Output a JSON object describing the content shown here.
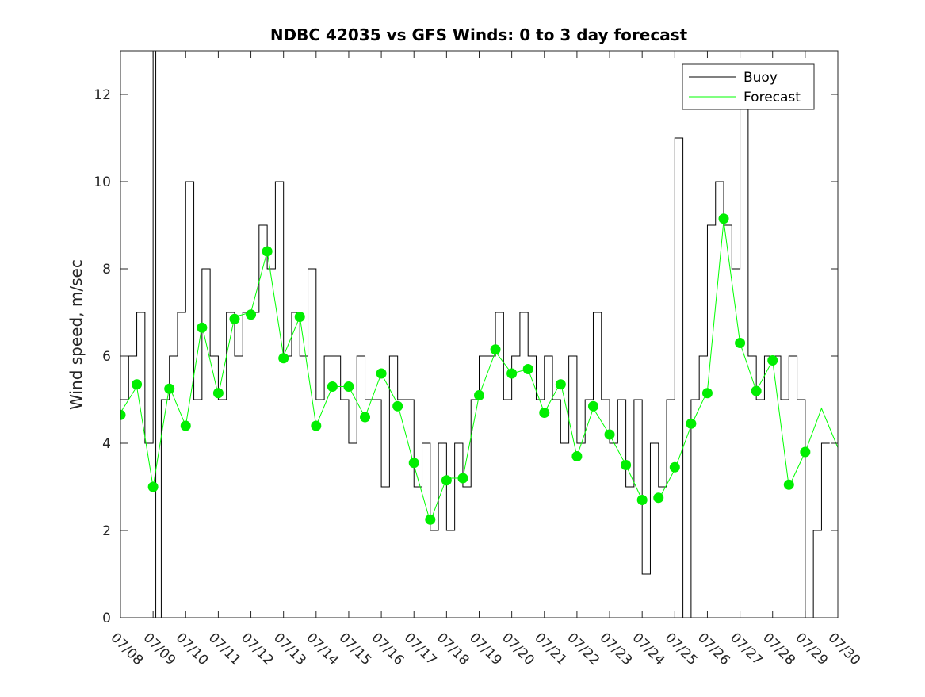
{
  "chart_data": {
    "type": "line",
    "title": "NDBC 42035 vs GFS Winds: 0 to 3 day forecast",
    "xlabel": "",
    "ylabel": "Wind speed, m/sec",
    "xlim": [
      "07/08",
      "07/30"
    ],
    "ylim": [
      0,
      13
    ],
    "y_ticks": [
      0,
      2,
      4,
      6,
      8,
      10,
      12
    ],
    "x_tick_labels": [
      "07/08",
      "07/09",
      "07/10",
      "07/11",
      "07/12",
      "07/13",
      "07/14",
      "07/15",
      "07/16",
      "07/17",
      "07/18",
      "07/19",
      "07/20",
      "07/21",
      "07/22",
      "07/23",
      "07/24",
      "07/25",
      "07/26",
      "07/27",
      "07/28",
      "07/29",
      "07/30"
    ],
    "legend_position": "top-right",
    "grid": false,
    "series": [
      {
        "name": "Buoy",
        "style": "step",
        "color": "#000000",
        "x": [
          "07/08 00:00",
          "07/08 06:00",
          "07/08 12:00",
          "07/08 18:00",
          "07/09 00:00",
          "07/09 02:00",
          "07/09 06:00",
          "07/09 12:00",
          "07/09 18:00",
          "07/10 00:00",
          "07/10 06:00",
          "07/10 12:00",
          "07/10 18:00",
          "07/11 00:00",
          "07/11 06:00",
          "07/11 12:00",
          "07/11 18:00",
          "07/12 00:00",
          "07/12 06:00",
          "07/12 12:00",
          "07/12 18:00",
          "07/13 00:00",
          "07/13 06:00",
          "07/13 12:00",
          "07/13 18:00",
          "07/14 00:00",
          "07/14 06:00",
          "07/14 12:00",
          "07/14 18:00",
          "07/15 00:00",
          "07/15 06:00",
          "07/15 12:00",
          "07/15 18:00",
          "07/16 00:00",
          "07/16 06:00",
          "07/16 12:00",
          "07/16 18:00",
          "07/17 00:00",
          "07/17 06:00",
          "07/17 12:00",
          "07/17 18:00",
          "07/18 00:00",
          "07/18 06:00",
          "07/18 12:00",
          "07/18 18:00",
          "07/19 00:00",
          "07/19 06:00",
          "07/19 12:00",
          "07/19 18:00",
          "07/20 00:00",
          "07/20 06:00",
          "07/20 12:00",
          "07/20 18:00",
          "07/21 00:00",
          "07/21 06:00",
          "07/21 12:00",
          "07/21 18:00",
          "07/22 00:00",
          "07/22 06:00",
          "07/22 12:00",
          "07/22 18:00",
          "07/23 00:00",
          "07/23 06:00",
          "07/23 12:00",
          "07/23 18:00",
          "07/24 00:00",
          "07/24 06:00",
          "07/24 12:00",
          "07/24 18:00",
          "07/25 00:00",
          "07/25 06:00",
          "07/25 12:00",
          "07/25 18:00",
          "07/26 00:00",
          "07/26 06:00",
          "07/26 12:00",
          "07/26 18:00",
          "07/27 00:00",
          "07/27 06:00",
          "07/27 12:00",
          "07/27 18:00",
          "07/28 00:00",
          "07/28 06:00",
          "07/28 12:00",
          "07/28 18:00",
          "07/29 00:00",
          "07/29 06:00",
          "07/29 12:00"
        ],
        "values": [
          5,
          6,
          7,
          4,
          13,
          0,
          5,
          6,
          7,
          10,
          5,
          8,
          6,
          5,
          7,
          6,
          7,
          7,
          9,
          8,
          10,
          6,
          7,
          6,
          8,
          5,
          6,
          6,
          5,
          4,
          6,
          5,
          5,
          3,
          6,
          5,
          5,
          3,
          4,
          2,
          4,
          2,
          4,
          3,
          5,
          6,
          6,
          7,
          5,
          6,
          7,
          6,
          5,
          6,
          5,
          4,
          6,
          4,
          5,
          7,
          5,
          4,
          5,
          3,
          5,
          1,
          4,
          3,
          5,
          11,
          0,
          5,
          6,
          9,
          10,
          9,
          8,
          12,
          6,
          5,
          6,
          6,
          5,
          6,
          5,
          0,
          2,
          4
        ]
      },
      {
        "name": "Forecast",
        "style": "line",
        "color": "#00ff00",
        "x": [
          "07/08 00:00",
          "07/08 12:00",
          "07/09 00:00",
          "07/09 12:00",
          "07/10 00:00",
          "07/10 12:00",
          "07/11 00:00",
          "07/11 12:00",
          "07/12 00:00",
          "07/12 12:00",
          "07/13 00:00",
          "07/13 12:00",
          "07/14 00:00",
          "07/14 12:00",
          "07/15 00:00",
          "07/15 12:00",
          "07/16 00:00",
          "07/16 12:00",
          "07/17 00:00",
          "07/17 12:00",
          "07/18 00:00",
          "07/18 12:00",
          "07/19 00:00",
          "07/19 12:00",
          "07/20 00:00",
          "07/20 12:00",
          "07/21 00:00",
          "07/21 12:00",
          "07/22 00:00",
          "07/22 12:00",
          "07/23 00:00",
          "07/23 12:00",
          "07/24 00:00",
          "07/24 12:00",
          "07/25 00:00",
          "07/25 12:00",
          "07/26 00:00",
          "07/26 12:00",
          "07/27 00:00",
          "07/27 12:00",
          "07/28 00:00",
          "07/28 12:00",
          "07/29 00:00",
          "07/29 12:00",
          "07/30 00:00"
        ],
        "values": [
          4.7,
          5.3,
          3.0,
          5.3,
          4.4,
          6.7,
          5.1,
          6.9,
          7.0,
          8.4,
          6.0,
          6.9,
          4.4,
          5.3,
          5.3,
          4.6,
          5.6,
          4.9,
          3.5,
          2.2,
          3.2,
          3.2,
          5.1,
          6.1,
          5.6,
          5.7,
          4.7,
          5.4,
          3.7,
          4.8,
          4.2,
          3.5,
          2.7,
          2.7,
          3.4,
          4.4,
          5.2,
          9.1,
          6.3,
          5.2,
          5.9,
          3.0,
          3.8,
          4.8,
          3.9
        ]
      }
    ],
    "markers": {
      "color": "#00ee00",
      "x": [
        "07/08 00:00",
        "07/08 12:00",
        "07/09 00:00",
        "07/09 12:00",
        "07/10 00:00",
        "07/10 12:00",
        "07/11 00:00",
        "07/11 12:00",
        "07/12 00:00",
        "07/12 12:00",
        "07/13 00:00",
        "07/13 12:00",
        "07/14 00:00",
        "07/14 12:00",
        "07/15 00:00",
        "07/15 12:00",
        "07/16 00:00",
        "07/16 12:00",
        "07/17 00:00",
        "07/17 12:00",
        "07/18 00:00",
        "07/18 12:00",
        "07/19 00:00",
        "07/19 12:00",
        "07/20 00:00",
        "07/20 12:00",
        "07/21 00:00",
        "07/21 12:00",
        "07/22 00:00",
        "07/22 12:00",
        "07/23 00:00",
        "07/23 12:00",
        "07/24 00:00",
        "07/24 12:00",
        "07/25 00:00",
        "07/25 12:00",
        "07/26 00:00",
        "07/26 12:00",
        "07/27 00:00",
        "07/27 12:00",
        "07/28 00:00",
        "07/28 12:00",
        "07/29 00:00"
      ],
      "values": [
        4.65,
        5.35,
        3.0,
        5.25,
        4.4,
        6.65,
        5.15,
        6.85,
        6.95,
        8.4,
        5.95,
        6.9,
        4.4,
        5.3,
        5.3,
        4.6,
        5.6,
        4.85,
        3.55,
        2.25,
        3.15,
        3.2,
        5.1,
        6.15,
        5.6,
        5.7,
        4.7,
        5.35,
        3.7,
        4.85,
        4.2,
        3.5,
        2.7,
        2.75,
        3.45,
        4.45,
        5.15,
        9.15,
        6.3,
        5.2,
        5.9,
        3.05,
        3.8
      ]
    }
  }
}
